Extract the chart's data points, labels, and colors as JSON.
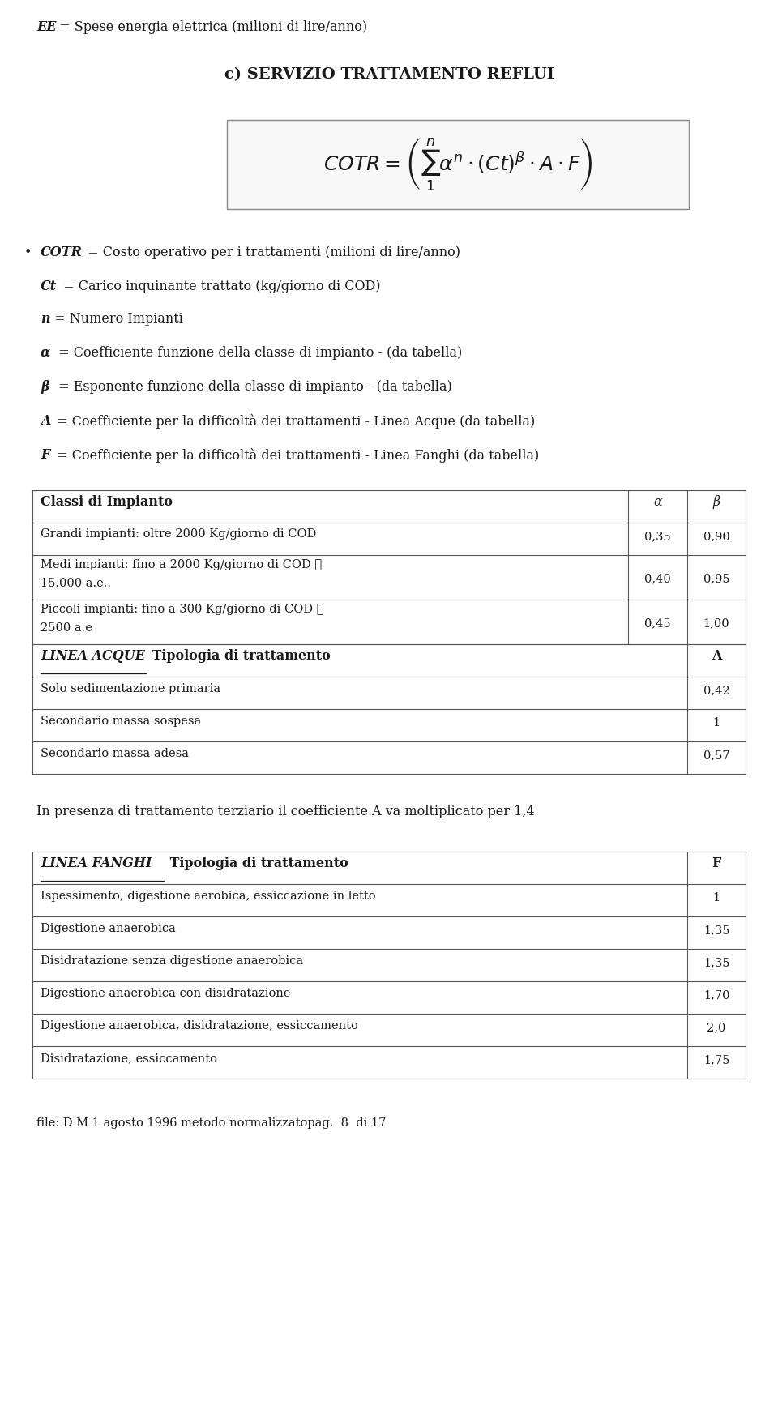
{
  "bg_color": "#ffffff",
  "text_color": "#1a1a1a",
  "table1_rows": [
    [
      "Grandi impianti: oltre 2000 Kg/giorno di COD",
      "0,35",
      "0,90"
    ],
    [
      "Medi impianti: fino a 2000 Kg/giorno di COD ≅",
      "15.000 a.e..",
      "0,40",
      "0,95"
    ],
    [
      "Piccoli impianti: fino a 300 Kg/giorno di COD ≅",
      "2500 a.e",
      "0,45",
      "1,00"
    ]
  ],
  "table2_rows": [
    [
      "Solo sedimentazione primaria",
      "0,42"
    ],
    [
      "Secondario massa sospesa",
      "1"
    ],
    [
      "Secondario massa adesa",
      "0,57"
    ]
  ],
  "terziario_note": "In presenza di trattamento terziario il coefficiente A va moltiplicato per 1,4",
  "table3_rows": [
    [
      "Ispessimento, digestione aerobica, essiccazione in letto",
      "1"
    ],
    [
      "Digestione anaerobica",
      "1,35"
    ],
    [
      "Disidratazione senza digestione anaerobica",
      "1,35"
    ],
    [
      "Digestione anaerobica con disidratazione",
      "1,70"
    ],
    [
      "Digestione anaerobica, disidratazione, essiccamento",
      "2,0"
    ],
    [
      "Disidratazione, essiccamento",
      "1,75"
    ]
  ],
  "footer": "file: D M 1 agosto 1996 metodo normalizzatopag.  8  di 17"
}
